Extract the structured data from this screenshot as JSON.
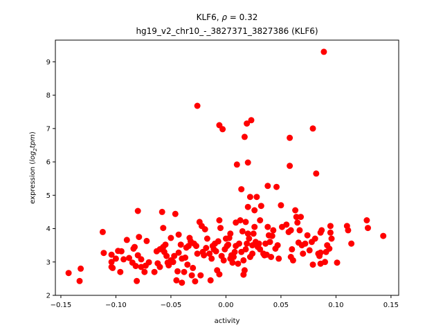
{
  "chart_data": {
    "type": "scatter",
    "title_line1_prefix": "KLF6, ",
    "title_line1_rho": "ρ",
    "title_line1_suffix": " = 0.32",
    "title_line2": "hg19_v2_chr10_-_3827371_3827386 (KLF6)",
    "xlabel": "activity",
    "ylabel_prefix": "expression (",
    "ylabel_log": "log",
    "ylabel_sub": "2",
    "ylabel_tpm": "tpm",
    "ylabel_suffix": ")",
    "xlim": [
      -0.155,
      0.157
    ],
    "ylim": [
      2.0,
      9.65
    ],
    "xticks": [
      -0.15,
      -0.1,
      -0.05,
      0.0,
      0.05,
      0.1,
      0.15
    ],
    "xtick_labels": [
      "−0.15",
      "−0.10",
      "−0.05",
      "0.00",
      "0.05",
      "0.10",
      "0.15"
    ],
    "yticks": [
      2,
      3,
      4,
      5,
      6,
      7,
      8,
      9
    ],
    "ytick_labels": [
      "2",
      "3",
      "4",
      "5",
      "6",
      "7",
      "8",
      "9"
    ],
    "grid": false,
    "marker_color": "#ff0000",
    "points": [
      [
        -0.143,
        2.67
      ],
      [
        -0.133,
        2.43
      ],
      [
        -0.132,
        2.8
      ],
      [
        -0.112,
        3.9
      ],
      [
        -0.111,
        3.27
      ],
      [
        -0.104,
        3.22
      ],
      [
        -0.104,
        3.0
      ],
      [
        -0.104,
        2.85
      ],
      [
        -0.103,
        2.82
      ],
      [
        -0.1,
        3.1
      ],
      [
        -0.098,
        3.33
      ],
      [
        -0.096,
        2.7
      ],
      [
        -0.095,
        3.32
      ],
      [
        -0.093,
        3.08
      ],
      [
        -0.09,
        3.66
      ],
      [
        -0.088,
        3.12
      ],
      [
        -0.085,
        2.98
      ],
      [
        -0.084,
        3.4
      ],
      [
        -0.083,
        3.45
      ],
      [
        -0.082,
        2.88
      ],
      [
        -0.081,
        2.43
      ],
      [
        -0.08,
        4.53
      ],
      [
        -0.08,
        3.2
      ],
      [
        -0.079,
        3.75
      ],
      [
        -0.077,
        3.08
      ],
      [
        -0.077,
        2.85
      ],
      [
        -0.074,
        2.7
      ],
      [
        -0.073,
        2.89
      ],
      [
        -0.072,
        3.63
      ],
      [
        -0.07,
        2.99
      ],
      [
        -0.065,
        2.7
      ],
      [
        -0.063,
        3.32
      ],
      [
        -0.062,
        2.96
      ],
      [
        -0.06,
        3.38
      ],
      [
        -0.06,
        2.85
      ],
      [
        -0.058,
        4.5
      ],
      [
        -0.057,
        4.02
      ],
      [
        -0.057,
        3.45
      ],
      [
        -0.056,
        3.3
      ],
      [
        -0.055,
        3.52
      ],
      [
        -0.054,
        3.18
      ],
      [
        -0.053,
        2.98
      ],
      [
        -0.052,
        2.9
      ],
      [
        -0.05,
        3.05
      ],
      [
        -0.05,
        3.72
      ],
      [
        -0.048,
        3.0
      ],
      [
        -0.047,
        3.18
      ],
      [
        -0.046,
        4.44
      ],
      [
        -0.045,
        2.45
      ],
      [
        -0.044,
        2.72
      ],
      [
        -0.043,
        3.28
      ],
      [
        -0.043,
        3.82
      ],
      [
        -0.041,
        3.52
      ],
      [
        -0.04,
        2.38
      ],
      [
        -0.04,
        3.1
      ],
      [
        -0.038,
        2.7
      ],
      [
        -0.037,
        3.13
      ],
      [
        -0.036,
        3.43
      ],
      [
        -0.035,
        2.92
      ],
      [
        -0.034,
        3.48
      ],
      [
        -0.033,
        3.72
      ],
      [
        -0.032,
        3.62
      ],
      [
        -0.031,
        2.6
      ],
      [
        -0.03,
        2.82
      ],
      [
        -0.029,
        3.55
      ],
      [
        -0.028,
        2.42
      ],
      [
        -0.027,
        3.48
      ],
      [
        -0.026,
        7.68
      ],
      [
        -0.026,
        3.25
      ],
      [
        -0.024,
        4.2
      ],
      [
        -0.023,
        2.6
      ],
      [
        -0.022,
        4.08
      ],
      [
        -0.021,
        3.3
      ],
      [
        -0.02,
        3.2
      ],
      [
        -0.019,
        3.98
      ],
      [
        -0.018,
        3.42
      ],
      [
        -0.017,
        3.7
      ],
      [
        -0.015,
        3.25
      ],
      [
        -0.014,
        2.45
      ],
      [
        -0.013,
        3.1
      ],
      [
        -0.012,
        3.48
      ],
      [
        -0.011,
        3.38
      ],
      [
        -0.01,
        3.55
      ],
      [
        -0.009,
        3.32
      ],
      [
        -0.008,
        2.75
      ],
      [
        -0.007,
        3.62
      ],
      [
        -0.006,
        4.25
      ],
      [
        -0.006,
        2.63
      ],
      [
        -0.006,
        7.1
      ],
      [
        -0.005,
        4.02
      ],
      [
        -0.004,
        3.18
      ],
      [
        -0.003,
        6.98
      ],
      [
        -0.002,
        3.05
      ],
      [
        -0.001,
        3.38
      ],
      [
        0.0,
        3.7
      ],
      [
        0.001,
        3.48
      ],
      [
        0.002,
        3.52
      ],
      [
        0.003,
        3.72
      ],
      [
        0.004,
        3.85
      ],
      [
        0.004,
        3.1
      ],
      [
        0.005,
        3.2
      ],
      [
        0.006,
        2.98
      ],
      [
        0.007,
        3.15
      ],
      [
        0.008,
        3.3
      ],
      [
        0.009,
        4.18
      ],
      [
        0.009,
        3.48
      ],
      [
        0.01,
        5.92
      ],
      [
        0.011,
        2.95
      ],
      [
        0.012,
        3.55
      ],
      [
        0.013,
        4.25
      ],
      [
        0.014,
        3.3
      ],
      [
        0.014,
        5.18
      ],
      [
        0.015,
        3.92
      ],
      [
        0.016,
        3.05
      ],
      [
        0.016,
        2.62
      ],
      [
        0.017,
        6.75
      ],
      [
        0.017,
        2.75
      ],
      [
        0.018,
        3.38
      ],
      [
        0.018,
        4.2
      ],
      [
        0.019,
        3.55
      ],
      [
        0.019,
        7.15
      ],
      [
        0.02,
        3.85
      ],
      [
        0.02,
        5.98
      ],
      [
        0.02,
        4.65
      ],
      [
        0.021,
        3.7
      ],
      [
        0.022,
        3.15
      ],
      [
        0.022,
        4.95
      ],
      [
        0.023,
        7.25
      ],
      [
        0.024,
        3.25
      ],
      [
        0.024,
        3.5
      ],
      [
        0.025,
        3.85
      ],
      [
        0.026,
        4.05
      ],
      [
        0.026,
        4.55
      ],
      [
        0.027,
        3.6
      ],
      [
        0.028,
        4.95
      ],
      [
        0.029,
        3.45
      ],
      [
        0.03,
        3.55
      ],
      [
        0.031,
        4.25
      ],
      [
        0.031,
        3.38
      ],
      [
        0.032,
        4.68
      ],
      [
        0.034,
        3.25
      ],
      [
        0.035,
        3.2
      ],
      [
        0.036,
        3.55
      ],
      [
        0.037,
        3.22
      ],
      [
        0.038,
        5.28
      ],
      [
        0.038,
        4.05
      ],
      [
        0.039,
        3.8
      ],
      [
        0.04,
        3.6
      ],
      [
        0.041,
        3.15
      ],
      [
        0.042,
        3.78
      ],
      [
        0.043,
        3.95
      ],
      [
        0.045,
        3.4
      ],
      [
        0.046,
        5.25
      ],
      [
        0.047,
        3.5
      ],
      [
        0.048,
        3.1
      ],
      [
        0.05,
        4.7
      ],
      [
        0.051,
        4.05
      ],
      [
        0.055,
        4.12
      ],
      [
        0.057,
        3.9
      ],
      [
        0.058,
        6.72
      ],
      [
        0.058,
        5.88
      ],
      [
        0.059,
        3.95
      ],
      [
        0.059,
        3.15
      ],
      [
        0.06,
        3.38
      ],
      [
        0.061,
        3.05
      ],
      [
        0.063,
        4.55
      ],
      [
        0.064,
        4.35
      ],
      [
        0.065,
        4.18
      ],
      [
        0.066,
        3.58
      ],
      [
        0.067,
        3.95
      ],
      [
        0.068,
        4.35
      ],
      [
        0.069,
        3.5
      ],
      [
        0.07,
        3.25
      ],
      [
        0.072,
        3.55
      ],
      [
        0.074,
        3.8
      ],
      [
        0.076,
        3.35
      ],
      [
        0.078,
        3.6
      ],
      [
        0.079,
        7.0
      ],
      [
        0.079,
        2.92
      ],
      [
        0.081,
        3.7
      ],
      [
        0.082,
        5.65
      ],
      [
        0.084,
        3.25
      ],
      [
        0.085,
        3.18
      ],
      [
        0.086,
        3.28
      ],
      [
        0.086,
        3.88
      ],
      [
        0.086,
        2.95
      ],
      [
        0.087,
        3.95
      ],
      [
        0.089,
        9.3
      ],
      [
        0.09,
        3.0
      ],
      [
        0.091,
        3.3
      ],
      [
        0.092,
        3.5
      ],
      [
        0.094,
        3.4
      ],
      [
        0.095,
        3.88
      ],
      [
        0.095,
        4.08
      ],
      [
        0.096,
        3.7
      ],
      [
        0.101,
        2.98
      ],
      [
        0.11,
        4.08
      ],
      [
        0.111,
        3.95
      ],
      [
        0.114,
        3.55
      ],
      [
        0.128,
        4.25
      ],
      [
        0.129,
        4.02
      ],
      [
        0.143,
        3.78
      ]
    ]
  }
}
